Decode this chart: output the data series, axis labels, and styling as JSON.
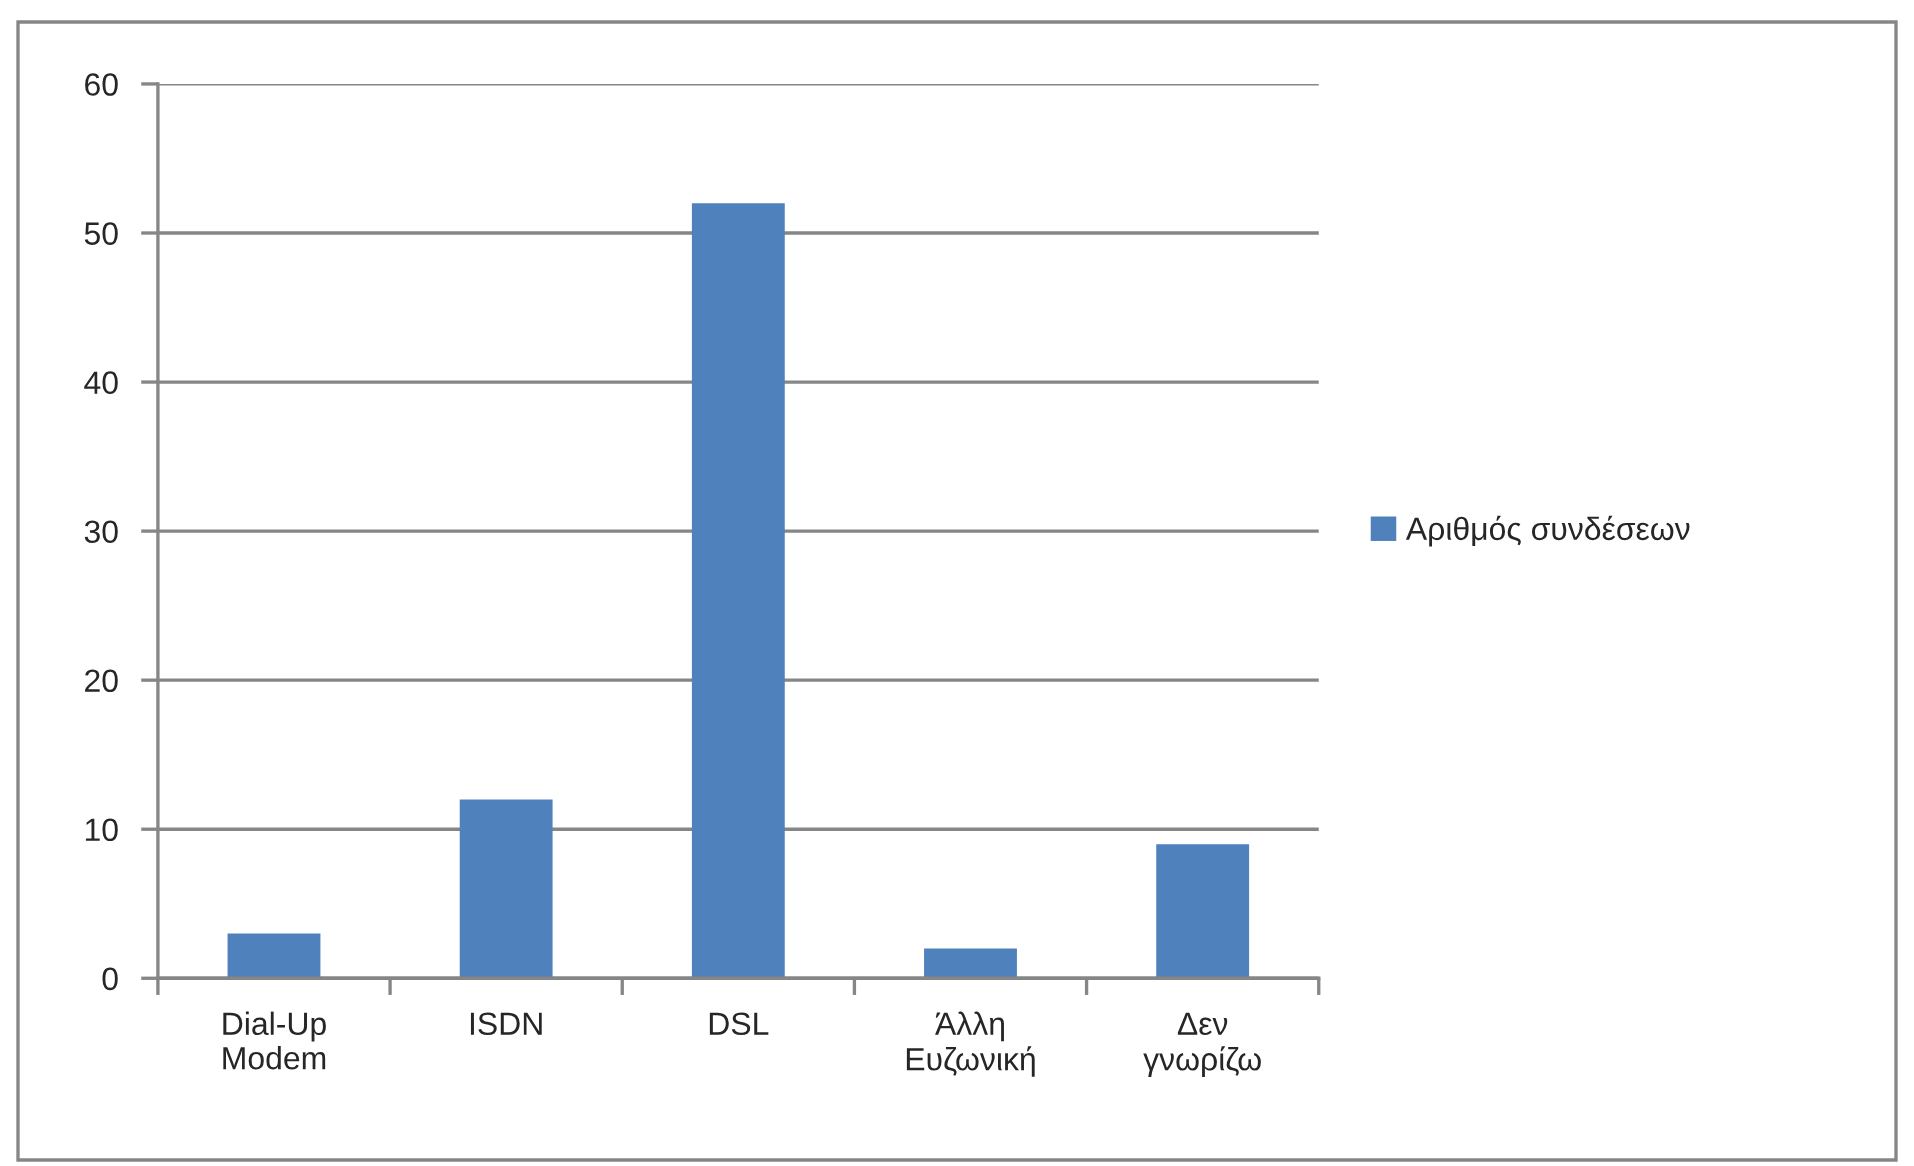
{
  "chart_data": {
    "type": "bar",
    "categories": [
      "Dial-Up\nModem",
      "ISDN",
      "DSL",
      "Άλλη\nΕυζωνική",
      "Δεν\nγνωρίζω"
    ],
    "series": [
      {
        "name": "Αριθμός συνδέσεων",
        "color": "#4f81bd",
        "values": [
          3,
          12,
          52,
          2,
          9
        ]
      }
    ],
    "ylim": [
      0,
      60
    ],
    "yticks": [
      0,
      10,
      20,
      30,
      40,
      50,
      60
    ],
    "grid": "y",
    "legend": "right"
  }
}
